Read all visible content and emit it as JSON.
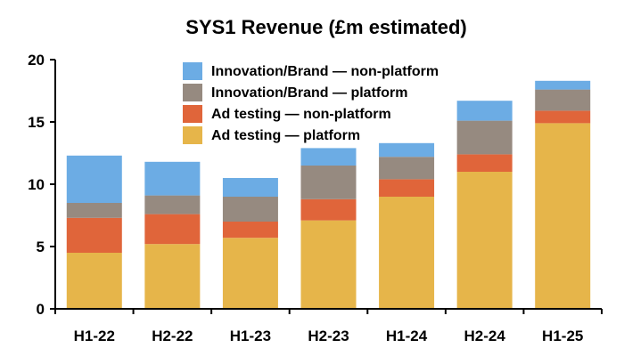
{
  "chart_data": {
    "type": "bar",
    "stacked": true,
    "title": "SYS1 Revenue (£m estimated)",
    "xlabel": "",
    "ylabel": "",
    "ylim": [
      0,
      20
    ],
    "yticks": [
      0,
      5,
      10,
      15,
      20
    ],
    "grid": false,
    "legend_position": "top-right",
    "categories": [
      "H1-22",
      "H2-22",
      "H1-23",
      "H2-23",
      "H1-24",
      "H2-24",
      "H1-25"
    ],
    "series": [
      {
        "name": "Ad testing — platform",
        "color": "#e6b54a",
        "values": [
          4.5,
          5.2,
          5.7,
          7.1,
          9.0,
          11.0,
          14.9
        ]
      },
      {
        "name": "Ad testing — non-platform",
        "color": "#e0653a",
        "values": [
          2.8,
          2.4,
          1.3,
          1.7,
          1.4,
          1.4,
          1.0
        ]
      },
      {
        "name": "Innovation/Brand — platform",
        "color": "#968a80",
        "values": [
          1.2,
          1.5,
          2.0,
          2.7,
          1.8,
          2.7,
          1.7
        ]
      },
      {
        "name": "Innovation/Brand — non-platform",
        "color": "#6cace4",
        "values": [
          3.8,
          2.7,
          1.5,
          1.4,
          1.1,
          1.6,
          0.7
        ]
      }
    ],
    "legend_order": [
      3,
      2,
      1,
      0
    ]
  }
}
